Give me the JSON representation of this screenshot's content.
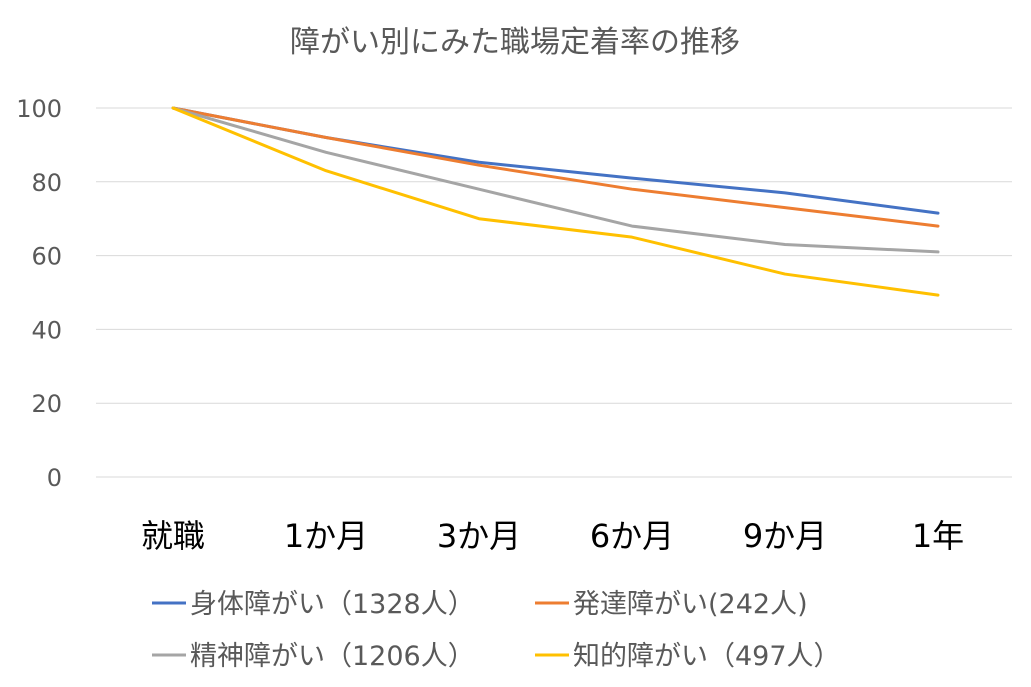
{
  "chart_data": {
    "type": "line",
    "title": "障がい別にみた職場定着率の推移",
    "xlabel": "",
    "ylabel": "",
    "categories": [
      "就職",
      "1か月",
      "3か月",
      "6か月",
      "9か月",
      "1年"
    ],
    "ylim": [
      0,
      100
    ],
    "yticks": [
      0,
      20,
      40,
      60,
      80,
      100
    ],
    "grid": true,
    "legend_position": "bottom",
    "series": [
      {
        "name": "身体障がい（1328人）",
        "color": "#4472c4",
        "values": [
          100,
          92,
          85.3,
          81,
          77,
          71.5
        ]
      },
      {
        "name": "発達障がい(242人)",
        "color": "#ed7d31",
        "values": [
          100,
          92,
          84.5,
          78,
          73,
          68
        ]
      },
      {
        "name": "精神障がい（1206人）",
        "color": "#a5a5a5",
        "values": [
          100,
          88,
          78,
          68,
          63,
          61
        ]
      },
      {
        "name": "知的障がい（497人）",
        "color": "#ffc000",
        "values": [
          100,
          83,
          70,
          65,
          55,
          49.3
        ]
      }
    ]
  }
}
